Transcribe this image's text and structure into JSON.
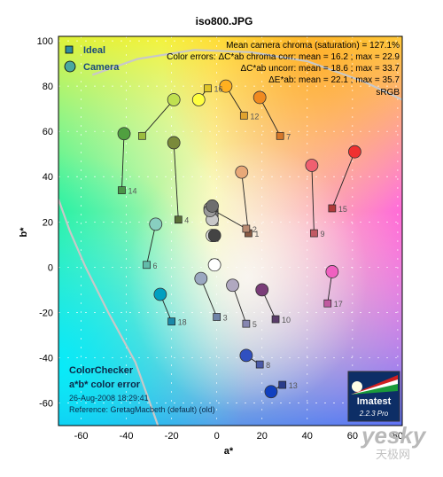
{
  "chart_data": {
    "type": "scatter",
    "title": "iso800.JPG",
    "xlabel": "a*",
    "ylabel": "b*",
    "xlim": [
      -70,
      82
    ],
    "ylim": [
      -70,
      102
    ],
    "xticks": [
      "-60",
      "-40",
      "-20",
      "0",
      "20",
      "40",
      "60",
      "80"
    ],
    "yticks": [
      "100",
      "80",
      "60",
      "40",
      "20",
      "0",
      "-20",
      "-40",
      "-60"
    ],
    "grid": true,
    "legend": [
      "Ideal",
      "Camera"
    ],
    "legend_position": "top-left",
    "stats": [
      "Mean camera chroma (saturation) = 127.1%",
      "Color errors: ΔC*ab chroma corr:  mean = 16.2 ;  max = 22.9",
      "ΔC*ab uncorr:  mean = 18.6 ;  max = 33.7",
      "ΔE*ab:  mean = 22.1 ;  max = 35.7"
    ],
    "gamut_label": "sRGB",
    "bottom_text": {
      "line1": "ColorChecker",
      "line2": "a*b* color error",
      "line3": "26-Aug-2008 18:29:41",
      "line4": "Reference: GretagMacbeth (default) (old)"
    },
    "badge": {
      "brand": "Imatest",
      "version": "2.2.3  Pro"
    },
    "watermark": {
      "main": "yesky",
      "sub": "天极网"
    },
    "patches": [
      {
        "id": "1",
        "ideal": [
          14,
          15
        ],
        "camera": [
          11,
          42
        ],
        "ideal_color": "#8a5a44",
        "camera_color": "#e8a878"
      },
      {
        "id": "2",
        "ideal": [
          13,
          17
        ],
        "camera": [
          -3,
          26
        ],
        "ideal_color": "#b98a72",
        "camera_color": "#e8d8c8"
      },
      {
        "id": "3",
        "ideal": [
          0,
          -22
        ],
        "camera": [
          -7,
          -5
        ],
        "ideal_color": "#6f84a8",
        "camera_color": "#9aa8c0"
      },
      {
        "id": "4",
        "ideal": [
          -17,
          21
        ],
        "camera": [
          -19,
          55
        ],
        "ideal_color": "#5a6e38",
        "camera_color": "#7a8a3a"
      },
      {
        "id": "5",
        "ideal": [
          13,
          -25
        ],
        "camera": [
          7,
          -8
        ],
        "ideal_color": "#8686b0",
        "camera_color": "#b0a8c0"
      },
      {
        "id": "6",
        "ideal": [
          -31,
          1
        ],
        "camera": [
          -27,
          19
        ],
        "ideal_color": "#62bcaa",
        "camera_color": "#88cfc0"
      },
      {
        "id": "7",
        "ideal": [
          28,
          58
        ],
        "camera": [
          19,
          75
        ],
        "ideal_color": "#d6782a",
        "camera_color": "#f08a20"
      },
      {
        "id": "8",
        "ideal": [
          19,
          -43
        ],
        "camera": [
          13,
          -39
        ],
        "ideal_color": "#4a5aa8",
        "camera_color": "#3050c0"
      },
      {
        "id": "9",
        "ideal": [
          43,
          15
        ],
        "camera": [
          42,
          45
        ],
        "ideal_color": "#c25a64",
        "camera_color": "#f06070"
      },
      {
        "id": "10",
        "ideal": [
          26,
          -23
        ],
        "camera": [
          20,
          -10
        ],
        "ideal_color": "#5a3c6a",
        "camera_color": "#7a3c78"
      },
      {
        "id": "11",
        "ideal": [
          -33,
          58
        ],
        "camera": [
          -19,
          74
        ],
        "ideal_color": "#9cbc3e",
        "camera_color": "#c0e050"
      },
      {
        "id": "12",
        "ideal": [
          12,
          67
        ],
        "camera": [
          4,
          80
        ],
        "ideal_color": "#e0a22e",
        "camera_color": "#ffb020"
      },
      {
        "id": "13",
        "ideal": [
          29,
          -52
        ],
        "camera": [
          24,
          -55
        ],
        "ideal_color": "#2a3c8a",
        "camera_color": "#1040c0"
      },
      {
        "id": "14",
        "ideal": [
          -42,
          34
        ],
        "camera": [
          -41,
          59
        ],
        "ideal_color": "#4a9448",
        "camera_color": "#50a040"
      },
      {
        "id": "15",
        "ideal": [
          51,
          26
        ],
        "camera": [
          61,
          51
        ],
        "ideal_color": "#b03a3a",
        "camera_color": "#f03030"
      },
      {
        "id": "16",
        "ideal": [
          -4,
          79
        ],
        "camera": [
          -8,
          74
        ],
        "ideal_color": "#e0c52a",
        "camera_color": "#ffff40"
      },
      {
        "id": "17",
        "ideal": [
          49,
          -16
        ],
        "camera": [
          51,
          -2
        ],
        "ideal_color": "#c05aa0",
        "camera_color": "#f060c0"
      },
      {
        "id": "18",
        "ideal": [
          -20,
          -24
        ],
        "camera": [
          -25,
          -12
        ],
        "ideal_color": "#1a88a8",
        "camera_color": "#00a0c0"
      },
      {
        "id": "19",
        "ideal": [
          -1,
          2
        ],
        "camera": [
          -1,
          1
        ],
        "ideal_color": "#f2f2f2",
        "camera_color": "#ffffff"
      },
      {
        "id": "20",
        "ideal": [
          -1,
          13
        ],
        "camera": [
          -2,
          14
        ],
        "ideal_color": "#c8c8c8",
        "camera_color": "#f0f0f0"
      },
      {
        "id": "21",
        "ideal": [
          -1,
          20
        ],
        "camera": [
          -2,
          21
        ],
        "ideal_color": "#a0a0a0",
        "camera_color": "#c8c8c8"
      },
      {
        "id": "22",
        "ideal": [
          -1,
          23
        ],
        "camera": [
          -3,
          25
        ],
        "ideal_color": "#7a7a7a",
        "camera_color": "#9a9a9a"
      },
      {
        "id": "23",
        "ideal": [
          -1,
          26
        ],
        "camera": [
          -2,
          27
        ],
        "ideal_color": "#555555",
        "camera_color": "#6e6e6e"
      },
      {
        "id": "24",
        "ideal": [
          -1,
          13
        ],
        "camera": [
          -1,
          14
        ],
        "ideal_color": "#343434",
        "camera_color": "#444444"
      }
    ],
    "visible_point_labels": [
      "1",
      "2",
      "3",
      "4",
      "5",
      "6",
      "7",
      "8",
      "9",
      "10",
      "12",
      "13",
      "14",
      "15",
      "16",
      "17",
      "18"
    ]
  }
}
